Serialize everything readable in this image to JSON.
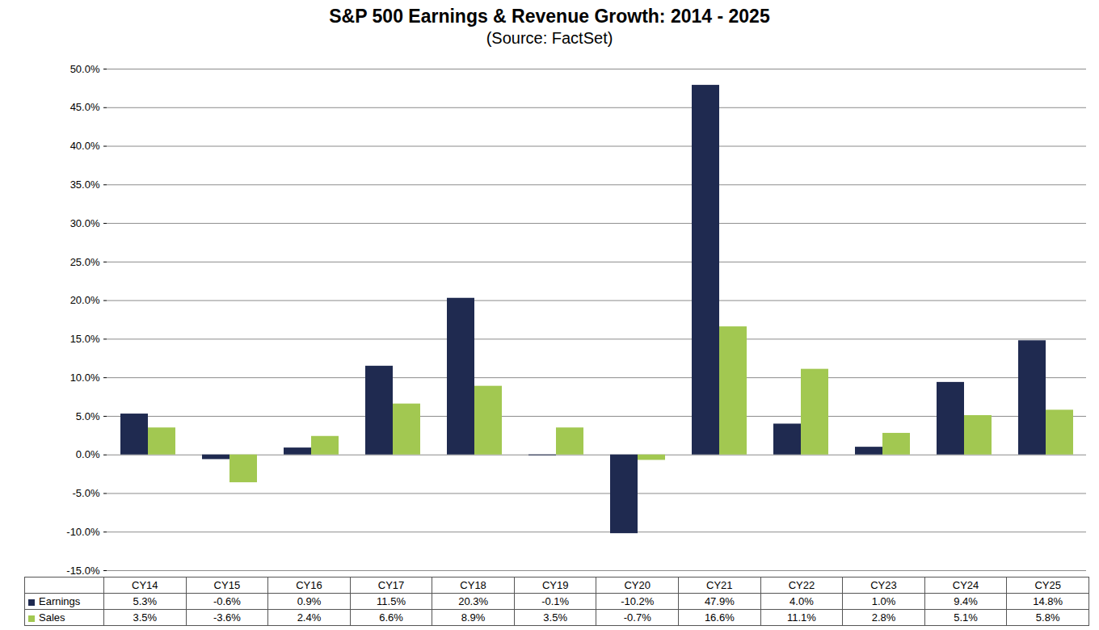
{
  "chart_data": {
    "type": "bar",
    "title": "S&P 500 Earnings & Revenue Growth:  2014 - 2025",
    "subtitle": "(Source: FactSet)",
    "categories": [
      "CY14",
      "CY15",
      "CY16",
      "CY17",
      "CY18",
      "CY19",
      "CY20",
      "CY21",
      "CY22",
      "CY23",
      "CY24",
      "CY25"
    ],
    "series": [
      {
        "name": "Earnings",
        "color": "#1f2a50",
        "values": [
          5.3,
          -0.6,
          0.9,
          11.5,
          20.3,
          -0.1,
          -10.2,
          47.9,
          4.0,
          1.0,
          9.4,
          14.8
        ],
        "value_labels": [
          "5.3%",
          "-0.6%",
          "0.9%",
          "11.5%",
          "20.3%",
          "-0.1%",
          "-10.2%",
          "47.9%",
          "4.0%",
          "1.0%",
          "9.4%",
          "14.8%"
        ]
      },
      {
        "name": "Sales",
        "color": "#a2c851",
        "values": [
          3.5,
          -3.6,
          2.4,
          6.6,
          8.9,
          3.5,
          -0.7,
          16.6,
          11.1,
          2.8,
          5.1,
          5.8
        ],
        "value_labels": [
          "3.5%",
          "-3.6%",
          "2.4%",
          "6.6%",
          "8.9%",
          "3.5%",
          "-0.7%",
          "16.6%",
          "11.1%",
          "2.8%",
          "5.1%",
          "5.8%"
        ]
      }
    ],
    "ylim": [
      -15,
      50
    ],
    "yticks": [
      {
        "value": -15,
        "label": "-15.0%"
      },
      {
        "value": -10,
        "label": "-10.0%"
      },
      {
        "value": -5,
        "label": "-5.0%"
      },
      {
        "value": 0,
        "label": "0.0%"
      },
      {
        "value": 5,
        "label": "5.0%"
      },
      {
        "value": 10,
        "label": "10.0%"
      },
      {
        "value": 15,
        "label": "15.0%"
      },
      {
        "value": 20,
        "label": "20.0%"
      },
      {
        "value": 25,
        "label": "25.0%"
      },
      {
        "value": 30,
        "label": "30.0%"
      },
      {
        "value": 35,
        "label": "35.0%"
      },
      {
        "value": 40,
        "label": "40.0%"
      },
      {
        "value": 45,
        "label": "45.0%"
      },
      {
        "value": 50,
        "label": "50.0%"
      }
    ],
    "grid": true
  }
}
